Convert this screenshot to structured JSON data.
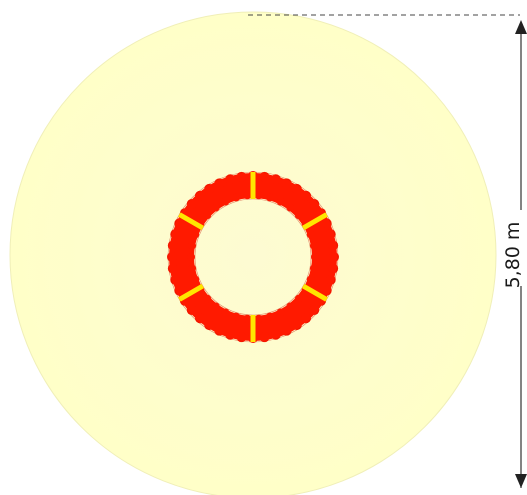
{
  "diagram": {
    "dimension_label": "5,80 m",
    "colors": {
      "zone": "#ffffc8",
      "zone_edge": "#eeeeb0",
      "ring": "#ff1a00",
      "ring_marks": "#ffe600",
      "dimension_line": "#333333"
    },
    "ring_mark_count": 6
  }
}
